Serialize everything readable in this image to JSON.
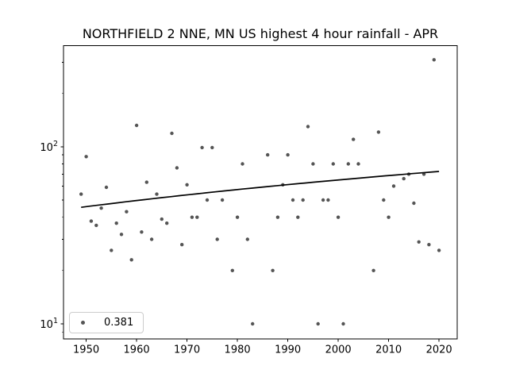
{
  "title": "NORTHFIELD 2 NNE, MN US highest 4 hour rainfall - APR",
  "legend": {
    "label": "0.381"
  },
  "colors": {
    "background": "#ffffff",
    "dot": "#555555",
    "trend_line": "#000000",
    "axis": "#000000",
    "legend_border": "#cccccc"
  },
  "chart_data": {
    "type": "scatter",
    "title": "NORTHFIELD 2 NNE, MN US highest 4 hour rainfall - APR",
    "xlabel": "",
    "ylabel": "",
    "yscale": "log",
    "xlim": [
      1945.5,
      2023.6
    ],
    "ylim": [
      8.2,
      372
    ],
    "grid": false,
    "legend_position": "lower-left",
    "x_ticks": [
      1950,
      1960,
      1970,
      1980,
      1990,
      2000,
      2010,
      2020
    ],
    "y_ticks": [
      {
        "value": 10,
        "label_base": "10",
        "label_exp": "1"
      },
      {
        "value": 100,
        "label_base": "10",
        "label_exp": "2"
      }
    ],
    "points": [
      {
        "year": 1949,
        "value": 54
      },
      {
        "year": 1950,
        "value": 88
      },
      {
        "year": 1951,
        "value": 38
      },
      {
        "year": 1952,
        "value": 36
      },
      {
        "year": 1953,
        "value": 45
      },
      {
        "year": 1954,
        "value": 59
      },
      {
        "year": 1955,
        "value": 26
      },
      {
        "year": 1956,
        "value": 37
      },
      {
        "year": 1957,
        "value": 32
      },
      {
        "year": 1958,
        "value": 43
      },
      {
        "year": 1959,
        "value": 23
      },
      {
        "year": 1960,
        "value": 132
      },
      {
        "year": 1961,
        "value": 33
      },
      {
        "year": 1962,
        "value": 63
      },
      {
        "year": 1963,
        "value": 30
      },
      {
        "year": 1964,
        "value": 54
      },
      {
        "year": 1965,
        "value": 39
      },
      {
        "year": 1966,
        "value": 37
      },
      {
        "year": 1967,
        "value": 119
      },
      {
        "year": 1968,
        "value": 76
      },
      {
        "year": 1969,
        "value": 28
      },
      {
        "year": 1970,
        "value": 61
      },
      {
        "year": 1971,
        "value": 40
      },
      {
        "year": 1972,
        "value": 40
      },
      {
        "year": 1973,
        "value": 99
      },
      {
        "year": 1974,
        "value": 50
      },
      {
        "year": 1975,
        "value": 99
      },
      {
        "year": 1976,
        "value": 30
      },
      {
        "year": 1977,
        "value": 50
      },
      {
        "year": 1979,
        "value": 20
      },
      {
        "year": 1980,
        "value": 40
      },
      {
        "year": 1981,
        "value": 80
      },
      {
        "year": 1982,
        "value": 30
      },
      {
        "year": 1983,
        "value": 10
      },
      {
        "year": 1986,
        "value": 90
      },
      {
        "year": 1987,
        "value": 20
      },
      {
        "year": 1988,
        "value": 40
      },
      {
        "year": 1989,
        "value": 61
      },
      {
        "year": 1990,
        "value": 90
      },
      {
        "year": 1991,
        "value": 50
      },
      {
        "year": 1992,
        "value": 40
      },
      {
        "year": 1993,
        "value": 50
      },
      {
        "year": 1994,
        "value": 130
      },
      {
        "year": 1995,
        "value": 80
      },
      {
        "year": 1996,
        "value": 10
      },
      {
        "year": 1997,
        "value": 50
      },
      {
        "year": 1998,
        "value": 50
      },
      {
        "year": 1999,
        "value": 80
      },
      {
        "year": 2000,
        "value": 40
      },
      {
        "year": 2001,
        "value": 10
      },
      {
        "year": 2002,
        "value": 80
      },
      {
        "year": 2003,
        "value": 110
      },
      {
        "year": 2004,
        "value": 80
      },
      {
        "year": 2007,
        "value": 20
      },
      {
        "year": 2008,
        "value": 121
      },
      {
        "year": 2009,
        "value": 50
      },
      {
        "year": 2010,
        "value": 40
      },
      {
        "year": 2011,
        "value": 60
      },
      {
        "year": 2013,
        "value": 66
      },
      {
        "year": 2014,
        "value": 70
      },
      {
        "year": 2015,
        "value": 48
      },
      {
        "year": 2016,
        "value": 29
      },
      {
        "year": 2017,
        "value": 70
      },
      {
        "year": 2018,
        "value": 28
      },
      {
        "year": 2019,
        "value": 310
      },
      {
        "year": 2020,
        "value": 26
      }
    ],
    "trend": {
      "label": "0.381",
      "slope_per_year": 0.381,
      "start_year": 1949,
      "start_value": 45.5,
      "end_year": 2020,
      "end_value": 72.6
    }
  }
}
